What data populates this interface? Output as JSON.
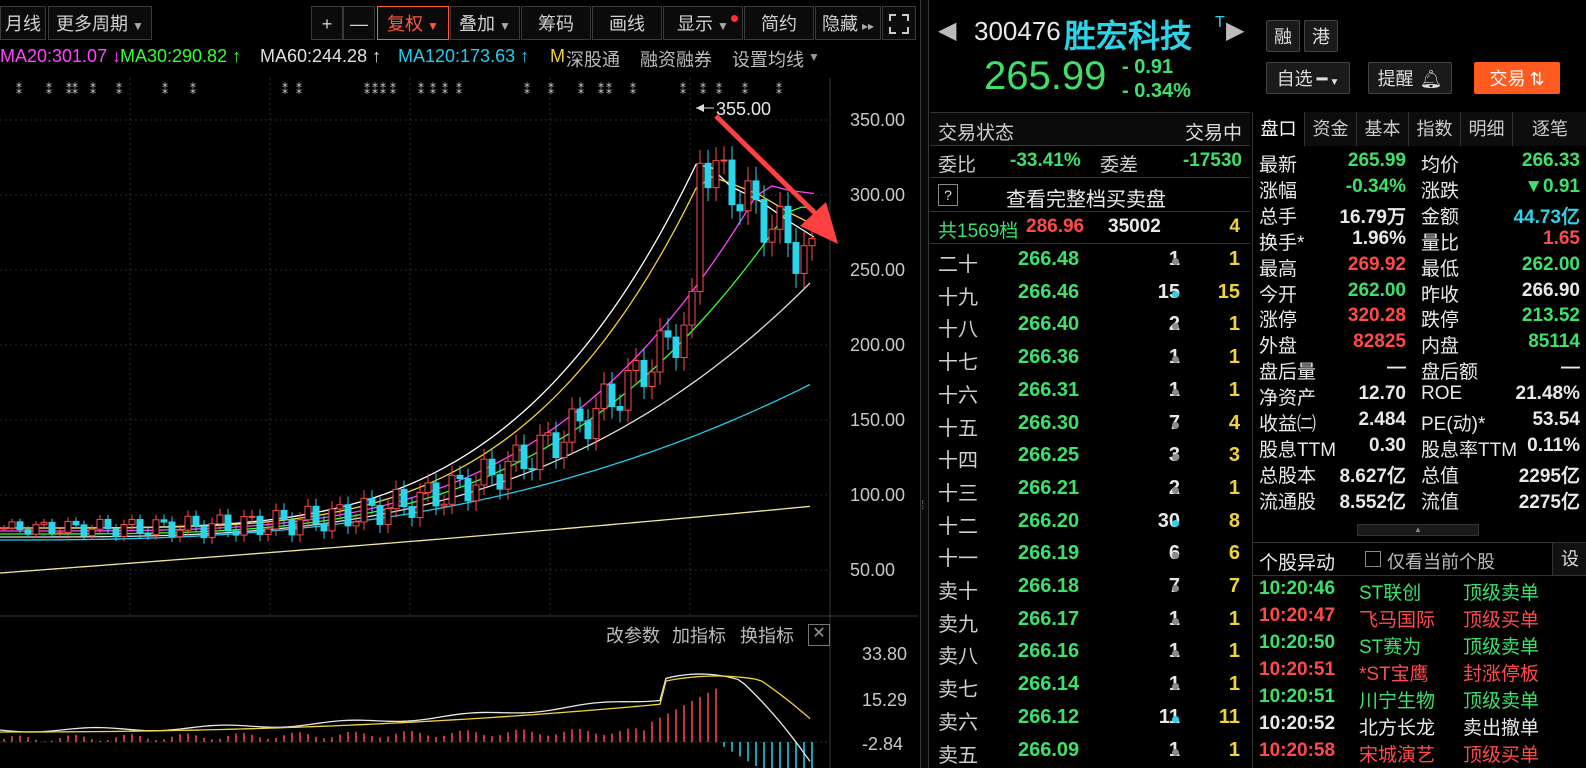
{
  "toolbar": {
    "left_items": [
      {
        "label": "月线"
      },
      {
        "label": "更多周期"
      }
    ],
    "right_items": [
      {
        "label": "+"
      },
      {
        "label": "—"
      },
      {
        "label": "复权"
      },
      {
        "label": "叠加"
      },
      {
        "label": "筹码"
      },
      {
        "label": "画线"
      },
      {
        "label": "显示"
      },
      {
        "label": "简约"
      },
      {
        "label": "隐藏"
      }
    ],
    "fullscreen_icon": "fullscreen-icon"
  },
  "ma_legend": [
    {
      "text": "MA20:301.07 ↓",
      "color": "#ff44ff"
    },
    {
      "text": "MA30:290.82 ↑",
      "color": "#33ff33"
    },
    {
      "text": "MA60:244.28 ↑",
      "color": "#e0e0e0"
    },
    {
      "text": "MA120:173.63 ↑",
      "color": "#22ccee"
    },
    {
      "text": "M",
      "color": "#f0d23c"
    },
    {
      "text": "深股通",
      "color": "#bbbbbb"
    },
    {
      "text": "融资融券",
      "color": "#bbbbbb"
    },
    {
      "text": "设置均线",
      "color": "#bbbbbb"
    }
  ],
  "price_axis": [
    "350.00",
    "300.00",
    "250.00",
    "200.00",
    "150.00",
    "100.00",
    "50.00"
  ],
  "high_marker": "355.00",
  "indicator_controls": [
    "改参数",
    "加指标",
    "换指标"
  ],
  "indicator_axis": [
    "33.80",
    "15.29",
    "-2.84"
  ],
  "quote": {
    "code": "300476",
    "name": "胜宏科技",
    "tag": "T",
    "badges": [
      "融",
      "港"
    ],
    "price": "265.99",
    "change": "- 0.91",
    "change_pct": "- 0.34%",
    "watch_label": "自选",
    "alert_label": "提醒",
    "trade_label": "交易"
  },
  "orderbook": {
    "status_label": "交易状态",
    "status_value": "交易中",
    "weibi_label": "委比",
    "weibi_value": "-33.41%",
    "weicha_label": "委差",
    "weicha_value": "-17530",
    "full_book_label": "查看完整档买卖盘",
    "total": {
      "label": "共1569档",
      "price": "286.96",
      "vol": "35002",
      "cnt": "4"
    },
    "levels": [
      {
        "label": "二十",
        "price": "266.48",
        "vol": "1",
        "dot": "grey",
        "cnt": "1"
      },
      {
        "label": "十九",
        "price": "266.46",
        "vol": "15",
        "dot": "cyan",
        "cnt": "15"
      },
      {
        "label": "十八",
        "price": "266.40",
        "vol": "2",
        "dot": "grey",
        "cnt": "1"
      },
      {
        "label": "十七",
        "price": "266.36",
        "vol": "1",
        "dot": "grey",
        "cnt": "1"
      },
      {
        "label": "十六",
        "price": "266.31",
        "vol": "1",
        "dot": "grey",
        "cnt": "1"
      },
      {
        "label": "十五",
        "price": "266.30",
        "vol": "7",
        "dot": "grey",
        "cnt": "4"
      },
      {
        "label": "十四",
        "price": "266.25",
        "vol": "3",
        "dot": "grey",
        "cnt": "3"
      },
      {
        "label": "十三",
        "price": "266.21",
        "vol": "2",
        "dot": "grey",
        "cnt": "1"
      },
      {
        "label": "十二",
        "price": "266.20",
        "vol": "30",
        "dot": "cyan",
        "cnt": "8"
      },
      {
        "label": "十一",
        "price": "266.19",
        "vol": "6",
        "dot": "grey",
        "cnt": "6"
      },
      {
        "label": "卖十",
        "price": "266.18",
        "vol": "7",
        "dot": "grey",
        "cnt": "7"
      },
      {
        "label": "卖九",
        "price": "266.17",
        "vol": "1",
        "dot": "grey",
        "cnt": "1"
      },
      {
        "label": "卖八",
        "price": "266.16",
        "vol": "1",
        "dot": "grey",
        "cnt": "1"
      },
      {
        "label": "卖七",
        "price": "266.14",
        "vol": "1",
        "dot": "grey",
        "cnt": "1"
      },
      {
        "label": "卖六",
        "price": "266.12",
        "vol": "11",
        "dot": "cyan",
        "cnt": "11"
      },
      {
        "label": "卖五",
        "price": "266.09",
        "vol": "1",
        "dot": "grey",
        "cnt": "1"
      }
    ]
  },
  "tabs": [
    "盘口",
    "资金",
    "基本",
    "指数",
    "明细",
    "逐笔"
  ],
  "stats": [
    {
      "k1": "最新",
      "v1": "265.99",
      "c1": "g",
      "k2": "均价",
      "v2": "266.33",
      "c2": "g"
    },
    {
      "k1": "涨幅",
      "v1": "-0.34%",
      "c1": "g",
      "k2": "涨跌",
      "v2": "▼0.91",
      "c2": "g"
    },
    {
      "k1": "总手",
      "v1": "16.79万",
      "c1": "w",
      "k2": "金额",
      "v2": "44.73亿",
      "c2": "c"
    },
    {
      "k1": "换手*",
      "v1": "1.96%",
      "c1": "w",
      "k2": "量比",
      "v2": "1.65",
      "c2": "r"
    },
    {
      "k1": "最高",
      "v1": "269.92",
      "c1": "r",
      "k2": "最低",
      "v2": "262.00",
      "c2": "g"
    },
    {
      "k1": "今开",
      "v1": "262.00",
      "c1": "g",
      "k2": "昨收",
      "v2": "266.90",
      "c2": "w"
    },
    {
      "k1": "涨停",
      "v1": "320.28",
      "c1": "r",
      "k2": "跌停",
      "v2": "213.52",
      "c2": "g"
    },
    {
      "k1": "外盘",
      "v1": "82825",
      "c1": "r",
      "k2": "内盘",
      "v2": "85114",
      "c2": "g"
    },
    {
      "k1": "盘后量",
      "v1": "—",
      "c1": "w",
      "k2": "盘后额",
      "v2": "—",
      "c2": "w"
    },
    {
      "k1": "净资产",
      "v1": "12.70",
      "c1": "w",
      "k2": "ROE",
      "v2": "21.48%",
      "c2": "w"
    },
    {
      "k1": "收益㈡",
      "v1": "2.484",
      "c1": "w",
      "k2": "PE(动)*",
      "v2": "53.54",
      "c2": "w"
    },
    {
      "k1": "股息TTM",
      "v1": "0.30",
      "c1": "w",
      "k2": "股息率TTM",
      "v2": "0.11%",
      "c2": "w"
    },
    {
      "k1": "总股本",
      "v1": "8.627亿",
      "c1": "w",
      "k2": "总值",
      "v2": "2295亿",
      "c2": "w"
    },
    {
      "k1": "流通股",
      "v1": "8.552亿",
      "c1": "w",
      "k2": "流值",
      "v2": "2275亿",
      "c2": "w"
    }
  ],
  "alerts": {
    "title": "个股异动",
    "checkbox_label": "仅看当前个股",
    "settings_label": "设",
    "rows": [
      {
        "time": "10:20:46",
        "name": "ST联创",
        "type": "顶级卖单",
        "color": "g"
      },
      {
        "time": "10:20:47",
        "name": "飞马国际",
        "type": "顶级买单",
        "color": "r"
      },
      {
        "time": "10:20:50",
        "name": "ST赛为",
        "type": "顶级卖单",
        "color": "g"
      },
      {
        "time": "10:20:51",
        "name": "*ST宝鹰",
        "type": "封涨停板",
        "color": "r"
      },
      {
        "time": "10:20:51",
        "name": "川宁生物",
        "type": "顶级卖单",
        "color": "g"
      },
      {
        "time": "10:20:52",
        "name": "北方长龙",
        "type": "卖出撤单",
        "color": "w"
      },
      {
        "time": "10:20:58",
        "name": "宋城演艺",
        "type": "顶级买单",
        "color": "r"
      }
    ]
  },
  "colors": {
    "up": "#ff4a4a",
    "down": "#3ee06a",
    "cyan": "#2bd4e8",
    "yellow": "#f0d23c",
    "accent_orange": "#ff5a1f"
  }
}
